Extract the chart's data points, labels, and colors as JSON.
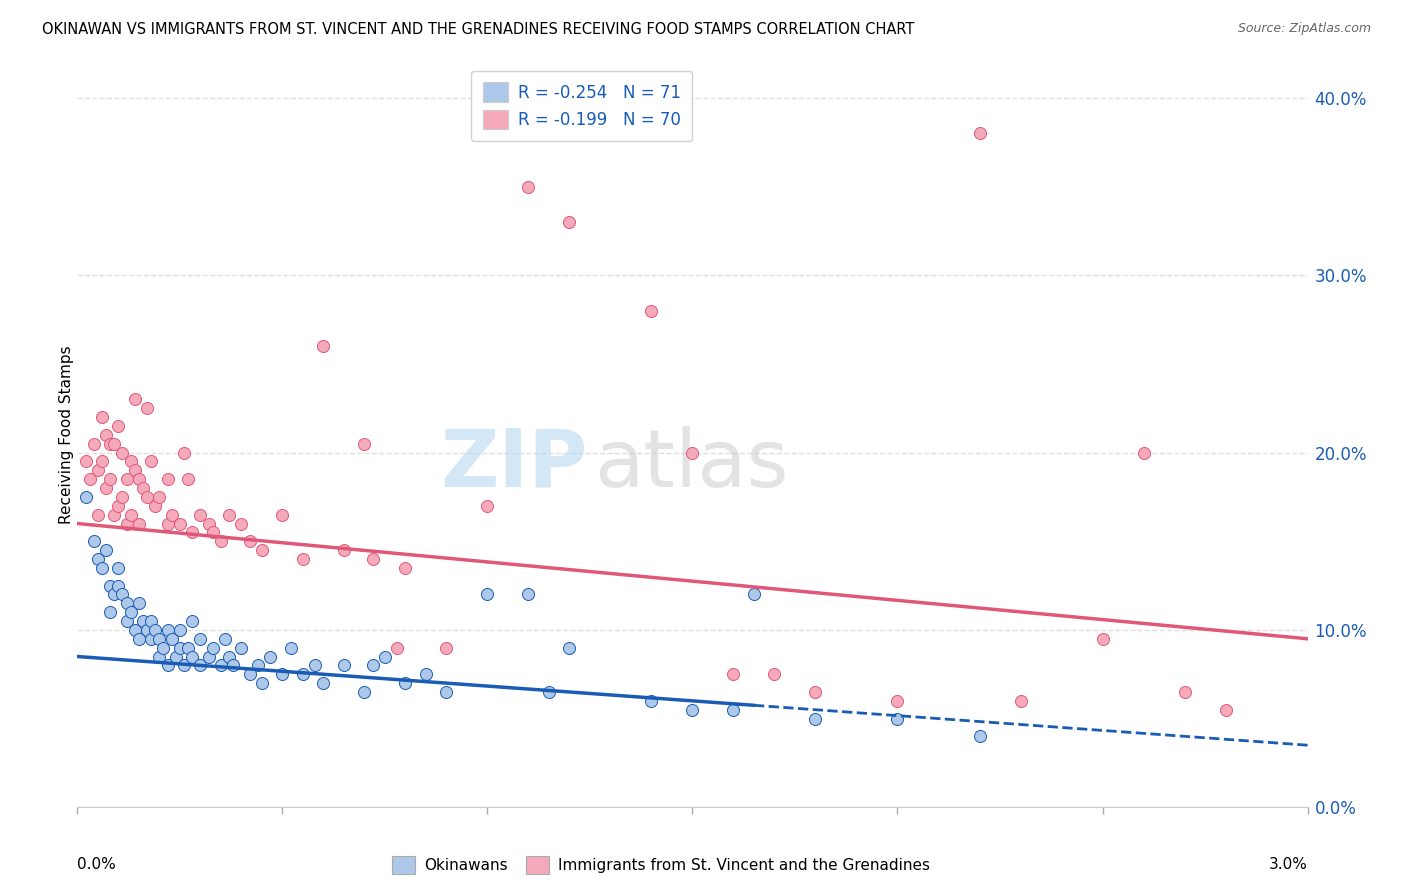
{
  "title": "OKINAWAN VS IMMIGRANTS FROM ST. VINCENT AND THE GRENADINES RECEIVING FOOD STAMPS CORRELATION CHART",
  "source": "Source: ZipAtlas.com",
  "ylabel": "Receiving Food Stamps",
  "xlim": [
    0.0,
    3.0
  ],
  "ylim": [
    0.0,
    42.0
  ],
  "yticks_right": [
    0.0,
    10.0,
    20.0,
    30.0,
    40.0
  ],
  "legend_blue_r": "-0.254",
  "legend_blue_n": "71",
  "legend_pink_r": "-0.199",
  "legend_pink_n": "70",
  "watermark": "ZIPatlas",
  "blue_color": "#adc8e8",
  "pink_color": "#f5aabb",
  "blue_line_color": "#1a5cb5",
  "pink_line_color": "#e05878",
  "blue_scatter": [
    [
      0.02,
      17.5
    ],
    [
      0.04,
      15.0
    ],
    [
      0.05,
      14.0
    ],
    [
      0.06,
      13.5
    ],
    [
      0.07,
      14.5
    ],
    [
      0.08,
      12.5
    ],
    [
      0.08,
      11.0
    ],
    [
      0.09,
      12.0
    ],
    [
      0.1,
      13.5
    ],
    [
      0.1,
      12.5
    ],
    [
      0.11,
      12.0
    ],
    [
      0.12,
      11.5
    ],
    [
      0.12,
      10.5
    ],
    [
      0.13,
      11.0
    ],
    [
      0.14,
      10.0
    ],
    [
      0.15,
      11.5
    ],
    [
      0.15,
      9.5
    ],
    [
      0.16,
      10.5
    ],
    [
      0.17,
      10.0
    ],
    [
      0.18,
      9.5
    ],
    [
      0.18,
      10.5
    ],
    [
      0.19,
      10.0
    ],
    [
      0.2,
      9.5
    ],
    [
      0.2,
      8.5
    ],
    [
      0.21,
      9.0
    ],
    [
      0.22,
      10.0
    ],
    [
      0.22,
      8.0
    ],
    [
      0.23,
      9.5
    ],
    [
      0.24,
      8.5
    ],
    [
      0.25,
      9.0
    ],
    [
      0.25,
      10.0
    ],
    [
      0.26,
      8.0
    ],
    [
      0.27,
      9.0
    ],
    [
      0.28,
      10.5
    ],
    [
      0.28,
      8.5
    ],
    [
      0.3,
      8.0
    ],
    [
      0.3,
      9.5
    ],
    [
      0.32,
      8.5
    ],
    [
      0.33,
      9.0
    ],
    [
      0.35,
      8.0
    ],
    [
      0.36,
      9.5
    ],
    [
      0.37,
      8.5
    ],
    [
      0.38,
      8.0
    ],
    [
      0.4,
      9.0
    ],
    [
      0.42,
      7.5
    ],
    [
      0.44,
      8.0
    ],
    [
      0.45,
      7.0
    ],
    [
      0.47,
      8.5
    ],
    [
      0.5,
      7.5
    ],
    [
      0.52,
      9.0
    ],
    [
      0.55,
      7.5
    ],
    [
      0.58,
      8.0
    ],
    [
      0.6,
      7.0
    ],
    [
      0.65,
      8.0
    ],
    [
      0.7,
      6.5
    ],
    [
      0.72,
      8.0
    ],
    [
      0.75,
      8.5
    ],
    [
      0.8,
      7.0
    ],
    [
      0.85,
      7.5
    ],
    [
      0.9,
      6.5
    ],
    [
      1.0,
      12.0
    ],
    [
      1.1,
      12.0
    ],
    [
      1.15,
      6.5
    ],
    [
      1.2,
      9.0
    ],
    [
      1.4,
      6.0
    ],
    [
      1.5,
      5.5
    ],
    [
      1.6,
      5.5
    ],
    [
      1.65,
      12.0
    ],
    [
      1.8,
      5.0
    ],
    [
      2.0,
      5.0
    ],
    [
      2.2,
      4.0
    ]
  ],
  "pink_scatter": [
    [
      0.02,
      19.5
    ],
    [
      0.03,
      18.5
    ],
    [
      0.04,
      20.5
    ],
    [
      0.05,
      19.0
    ],
    [
      0.05,
      16.5
    ],
    [
      0.06,
      22.0
    ],
    [
      0.06,
      19.5
    ],
    [
      0.07,
      21.0
    ],
    [
      0.07,
      18.0
    ],
    [
      0.08,
      20.5
    ],
    [
      0.08,
      18.5
    ],
    [
      0.09,
      20.5
    ],
    [
      0.09,
      16.5
    ],
    [
      0.1,
      21.5
    ],
    [
      0.1,
      17.0
    ],
    [
      0.11,
      20.0
    ],
    [
      0.11,
      17.5
    ],
    [
      0.12,
      18.5
    ],
    [
      0.12,
      16.0
    ],
    [
      0.13,
      19.5
    ],
    [
      0.13,
      16.5
    ],
    [
      0.14,
      23.0
    ],
    [
      0.14,
      19.0
    ],
    [
      0.15,
      18.5
    ],
    [
      0.15,
      16.0
    ],
    [
      0.16,
      18.0
    ],
    [
      0.17,
      22.5
    ],
    [
      0.17,
      17.5
    ],
    [
      0.18,
      19.5
    ],
    [
      0.19,
      17.0
    ],
    [
      0.2,
      17.5
    ],
    [
      0.22,
      18.5
    ],
    [
      0.22,
      16.0
    ],
    [
      0.23,
      16.5
    ],
    [
      0.25,
      16.0
    ],
    [
      0.26,
      20.0
    ],
    [
      0.27,
      18.5
    ],
    [
      0.28,
      15.5
    ],
    [
      0.3,
      16.5
    ],
    [
      0.32,
      16.0
    ],
    [
      0.33,
      15.5
    ],
    [
      0.35,
      15.0
    ],
    [
      0.37,
      16.5
    ],
    [
      0.4,
      16.0
    ],
    [
      0.42,
      15.0
    ],
    [
      0.45,
      14.5
    ],
    [
      0.5,
      16.5
    ],
    [
      0.55,
      14.0
    ],
    [
      0.6,
      26.0
    ],
    [
      0.65,
      14.5
    ],
    [
      0.7,
      20.5
    ],
    [
      0.72,
      14.0
    ],
    [
      0.78,
      9.0
    ],
    [
      0.8,
      13.5
    ],
    [
      0.9,
      9.0
    ],
    [
      1.0,
      17.0
    ],
    [
      1.1,
      35.0
    ],
    [
      1.2,
      33.0
    ],
    [
      1.4,
      28.0
    ],
    [
      1.5,
      20.0
    ],
    [
      1.6,
      7.5
    ],
    [
      1.7,
      7.5
    ],
    [
      1.8,
      6.5
    ],
    [
      2.0,
      6.0
    ],
    [
      2.2,
      38.0
    ],
    [
      2.3,
      6.0
    ],
    [
      2.5,
      9.5
    ],
    [
      2.6,
      20.0
    ],
    [
      2.7,
      6.5
    ],
    [
      2.8,
      5.5
    ]
  ],
  "blue_reg_x0": 0.0,
  "blue_reg_y0": 8.5,
  "blue_reg_x1": 3.0,
  "blue_reg_y1": 3.5,
  "blue_solid_end_x": 1.65,
  "pink_reg_x0": 0.0,
  "pink_reg_y0": 16.0,
  "pink_reg_x1": 3.0,
  "pink_reg_y1": 9.5,
  "background_color": "#ffffff",
  "grid_color": "#d8d8d8",
  "scatter_size": 75
}
